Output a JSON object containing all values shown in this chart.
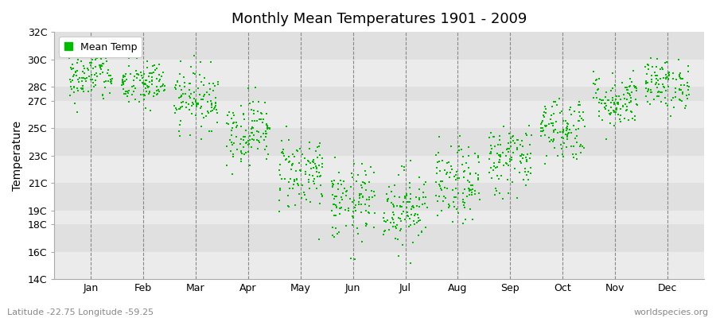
{
  "title": "Monthly Mean Temperatures 1901 - 2009",
  "ylabel": "Temperature",
  "subtitle_left": "Latitude -22.75 Longitude -59.25",
  "subtitle_right": "worldspecies.org",
  "legend_label": "Mean Temp",
  "dot_color": "#00bb00",
  "background_color": "#ffffff",
  "plot_bg_light": "#ebebeb",
  "plot_bg_dark": "#e0e0e0",
  "ylim": [
    14,
    32
  ],
  "ytick_vals": [
    14,
    16,
    18,
    19,
    21,
    23,
    25,
    27,
    28,
    30,
    32
  ],
  "months": [
    "Jan",
    "Feb",
    "Mar",
    "Apr",
    "May",
    "Jun",
    "Jul",
    "Aug",
    "Sep",
    "Oct",
    "Nov",
    "Dec"
  ],
  "monthly_means": [
    28.8,
    28.2,
    27.2,
    24.8,
    21.8,
    19.5,
    19.2,
    20.8,
    22.8,
    25.0,
    27.0,
    28.2
  ],
  "monthly_stds": [
    1.0,
    0.9,
    1.1,
    1.2,
    1.4,
    1.4,
    1.4,
    1.4,
    1.3,
    1.2,
    1.0,
    0.9
  ],
  "n_years": 109,
  "seed": 42
}
